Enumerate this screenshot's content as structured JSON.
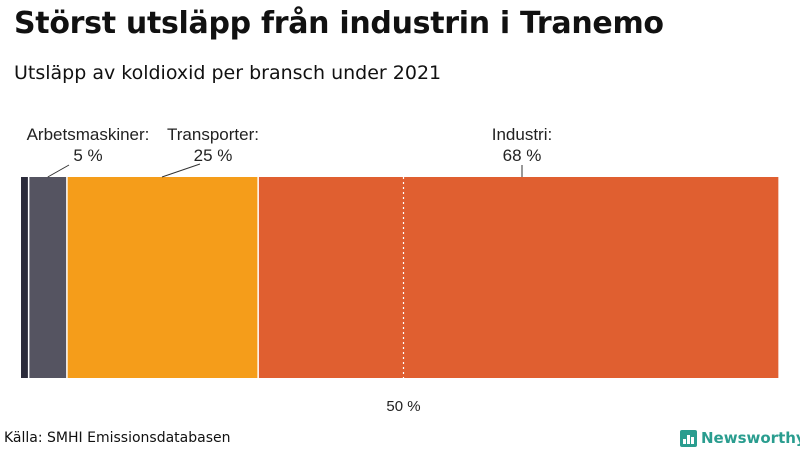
{
  "header": {
    "title": "Störst utsläpp från industrin i Tranemo",
    "subtitle": "Utsläpp av koldioxid per bransch under 2021"
  },
  "chart_data": {
    "type": "bar",
    "orientation": "horizontal-stacked",
    "segments": [
      {
        "value": 1,
        "color": "#2b2b3a"
      },
      {
        "name": "Arbetsmaskiner",
        "value": 5,
        "value_label": "5 %",
        "color": "#555461"
      },
      {
        "name": "Transporter",
        "value": 25,
        "value_label": "25 %",
        "color": "#f59d1a"
      },
      {
        "name": "Industri",
        "value": 68,
        "value_label": "68 %",
        "color": "#e05f30"
      }
    ],
    "reference_line": {
      "value": 50,
      "label": "50 %"
    },
    "xlim": [
      0,
      100
    ]
  },
  "footer": {
    "source": "Källa: SMHI Emissionsdatabasen",
    "brand": "Newsworthy",
    "brand_color": "#2a9d8f"
  }
}
